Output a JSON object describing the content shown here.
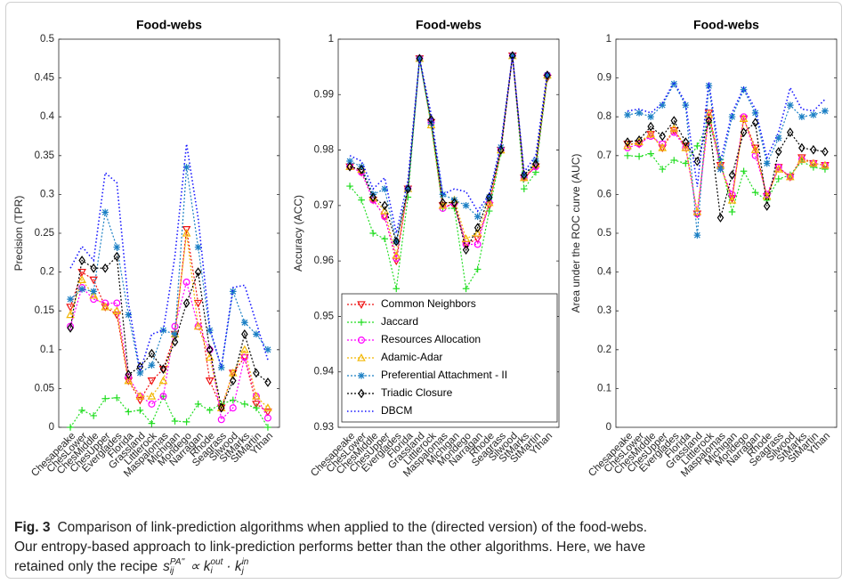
{
  "chart_data": [
    {
      "type": "line",
      "title": "Food-webs",
      "ylabel": "Precision (TPR)",
      "categories": [
        "Chesapeake",
        "ChesLower",
        "ChesMiddle",
        "ChesUpper",
        "Everglades",
        "Florida",
        "Grassland",
        "Littlerock",
        "Maspalomas",
        "Michigan",
        "Mondego",
        "Narragan",
        "Rhode",
        "Seagrass",
        "Silwood",
        "StMarks",
        "StMartin",
        "Ythan"
      ],
      "ylim": [
        0,
        0.5
      ],
      "yticks": [
        0,
        0.05,
        0.1,
        0.15,
        0.2,
        0.25,
        0.3,
        0.35,
        0.4,
        0.45,
        0.5
      ],
      "grid": false,
      "legend": false,
      "series": [
        {
          "color": "#ee1111",
          "marker": "v",
          "values": [
            0.155,
            0.2,
            0.19,
            0.155,
            0.145,
            0.06,
            0.035,
            0.06,
            0.075,
            0.12,
            0.255,
            0.16,
            0.06,
            0.025,
            0.07,
            0.09,
            0.03,
            0.02
          ]
        },
        {
          "color": "#22dd22",
          "marker": "+",
          "values": [
            0,
            0.022,
            0.015,
            0.037,
            0.038,
            0.02,
            0.022,
            0.005,
            0.04,
            0.008,
            0.007,
            0.03,
            0.022,
            0.03,
            0.035,
            0.03,
            0.025,
            0
          ]
        },
        {
          "color": "#ff00ff",
          "marker": "o",
          "values": [
            0.13,
            0.18,
            0.165,
            0.16,
            0.16,
            0.065,
            0.04,
            0.03,
            0.04,
            0.13,
            0.187,
            0.13,
            0.1,
            0.01,
            0.025,
            0.09,
            0.04,
            0.012
          ]
        },
        {
          "color": "#f2b600",
          "marker": "^",
          "values": [
            0.145,
            0.19,
            0.17,
            0.155,
            0.15,
            0.06,
            0.04,
            0.04,
            0.06,
            0.12,
            0.25,
            0.13,
            0.09,
            0.025,
            0.07,
            0.1,
            0.04,
            0.025
          ]
        },
        {
          "color": "#1b7fc4",
          "marker": "*",
          "values": [
            0.165,
            0.178,
            0.175,
            0.277,
            0.232,
            0.145,
            0.07,
            0.08,
            0.125,
            0.12,
            0.335,
            0.232,
            0.125,
            0.077,
            0.175,
            0.135,
            0.12,
            0.1
          ]
        },
        {
          "color": "#000000",
          "marker": "d",
          "values": [
            0.128,
            0.215,
            0.205,
            0.205,
            0.22,
            0.068,
            0.078,
            0.095,
            0.075,
            0.11,
            0.16,
            0.2,
            0.1,
            0.025,
            0.06,
            0.12,
            0.07,
            0.058
          ]
        },
        {
          "color": "#1515ff",
          "marker": "none",
          "values": [
            0.205,
            0.233,
            0.215,
            0.328,
            0.315,
            0.16,
            0.072,
            0.12,
            0.125,
            0.22,
            0.365,
            0.27,
            0.128,
            0.077,
            0.18,
            0.183,
            0.135,
            0.087
          ]
        }
      ]
    },
    {
      "type": "line",
      "title": "Food-webs",
      "ylabel": "Accuracy (ACC)",
      "categories": [
        "Chesapeake",
        "ChesLower",
        "ChesMiddle",
        "ChesUpper",
        "Everglades",
        "Florida",
        "Grassland",
        "Littlerock",
        "Maspalomas",
        "Michigan",
        "Mondego",
        "Narragan",
        "Rhode",
        "Seagrass",
        "Silwood",
        "StMarks",
        "StMartin",
        "Ythan"
      ],
      "ylim": [
        0.93,
        1
      ],
      "yticks": [
        0.93,
        0.94,
        0.95,
        0.96,
        0.97,
        0.98,
        0.99,
        1
      ],
      "grid": false,
      "legend": true,
      "legend_loc": "lower left",
      "series": [
        {
          "name": "Common Neighbors",
          "color": "#ee1111",
          "marker": "v",
          "values": [
            0.977,
            0.976,
            0.971,
            0.968,
            0.96,
            0.973,
            0.9965,
            0.985,
            0.97,
            0.97,
            0.963,
            0.964,
            0.97,
            0.98,
            0.997,
            0.975,
            0.977,
            0.993
          ]
        },
        {
          "name": "Jaccard",
          "color": "#22dd22",
          "marker": "+",
          "values": [
            0.9735,
            0.971,
            0.965,
            0.964,
            0.955,
            0.9715,
            0.9965,
            0.9845,
            0.9695,
            0.9695,
            0.955,
            0.9585,
            0.969,
            0.9795,
            0.997,
            0.973,
            0.976,
            0.993
          ]
        },
        {
          "name": "Resources Allocation",
          "color": "#ff00ff",
          "marker": "o",
          "values": [
            0.977,
            0.976,
            0.971,
            0.968,
            0.9605,
            0.973,
            0.9965,
            0.985,
            0.9695,
            0.9705,
            0.963,
            0.963,
            0.9705,
            0.98,
            0.997,
            0.975,
            0.977,
            0.9935
          ]
        },
        {
          "name": "Adamic-Adar",
          "color": "#f2b600",
          "marker": "^",
          "values": [
            0.977,
            0.9765,
            0.9715,
            0.969,
            0.961,
            0.973,
            0.9965,
            0.9845,
            0.97,
            0.971,
            0.964,
            0.965,
            0.9705,
            0.98,
            0.997,
            0.975,
            0.9775,
            0.9935
          ]
        },
        {
          "name": "Preferential Attachment - II",
          "color": "#1b7fc4",
          "marker": "*",
          "values": [
            0.978,
            0.977,
            0.972,
            0.973,
            0.9635,
            0.973,
            0.9965,
            0.985,
            0.972,
            0.971,
            0.97,
            0.968,
            0.9715,
            0.9805,
            0.997,
            0.9755,
            0.978,
            0.9935
          ]
        },
        {
          "name": "Triadic Closure",
          "color": "#000000",
          "marker": "d",
          "values": [
            0.977,
            0.9765,
            0.9715,
            0.97,
            0.9635,
            0.973,
            0.9965,
            0.9855,
            0.9705,
            0.9705,
            0.962,
            0.966,
            0.9715,
            0.98,
            0.997,
            0.9755,
            0.9775,
            0.9935
          ]
        },
        {
          "name": "DBCM",
          "color": "#1515ff",
          "marker": "none",
          "values": [
            0.979,
            0.978,
            0.973,
            0.975,
            0.965,
            0.9745,
            0.9965,
            0.9865,
            0.972,
            0.973,
            0.9725,
            0.969,
            0.972,
            0.981,
            0.997,
            0.976,
            0.979,
            0.994
          ]
        }
      ]
    },
    {
      "type": "line",
      "title": "Food-webs",
      "ylabel": "Area under the ROC curve (AUC)",
      "categories": [
        "Chesapeake",
        "ChesLower",
        "ChesMiddle",
        "ChesUpper",
        "Everglades",
        "Florida",
        "Grassland",
        "Littlerock",
        "Maspalomas",
        "Michigan",
        "Mondego",
        "Narragan",
        "Rhode",
        "Seagrass",
        "Silwood",
        "StMarks",
        "StMartin",
        "Ythan"
      ],
      "ylim": [
        0,
        1
      ],
      "yticks": [
        0,
        0.1,
        0.2,
        0.3,
        0.4,
        0.5,
        0.6,
        0.7,
        0.8,
        0.9,
        1
      ],
      "grid": false,
      "legend": false,
      "series": [
        {
          "color": "#ee1111",
          "marker": "v",
          "values": [
            0.73,
            0.73,
            0.755,
            0.72,
            0.765,
            0.725,
            0.55,
            0.81,
            0.675,
            0.59,
            0.795,
            0.72,
            0.595,
            0.67,
            0.645,
            0.695,
            0.68,
            0.675
          ]
        },
        {
          "color": "#22dd22",
          "marker": "+",
          "values": [
            0.7,
            0.698,
            0.705,
            0.665,
            0.688,
            0.68,
            0.725,
            0.785,
            0.69,
            0.555,
            0.66,
            0.605,
            0.585,
            0.64,
            0.65,
            0.685,
            0.67,
            0.665
          ]
        },
        {
          "color": "#ff00ff",
          "marker": "o",
          "values": [
            0.72,
            0.73,
            0.75,
            0.73,
            0.76,
            0.72,
            0.55,
            0.8,
            0.67,
            0.6,
            0.8,
            0.7,
            0.6,
            0.67,
            0.645,
            0.69,
            0.68,
            0.675
          ]
        },
        {
          "color": "#f2b600",
          "marker": "^",
          "values": [
            0.725,
            0.735,
            0.755,
            0.72,
            0.77,
            0.72,
            0.555,
            0.805,
            0.675,
            0.585,
            0.795,
            0.715,
            0.595,
            0.665,
            0.645,
            0.69,
            0.68,
            0.675
          ]
        },
        {
          "color": "#1b7fc4",
          "marker": "*",
          "values": [
            0.805,
            0.81,
            0.8,
            0.83,
            0.885,
            0.83,
            0.495,
            0.88,
            0.665,
            0.8,
            0.87,
            0.81,
            0.68,
            0.745,
            0.83,
            0.8,
            0.805,
            0.815
          ]
        },
        {
          "color": "#000000",
          "marker": "d",
          "values": [
            0.735,
            0.74,
            0.775,
            0.75,
            0.79,
            0.735,
            0.685,
            0.79,
            0.54,
            0.65,
            0.76,
            0.785,
            0.57,
            0.71,
            0.76,
            0.72,
            0.715,
            0.71
          ]
        },
        {
          "color": "#1515ff",
          "marker": "none",
          "values": [
            0.815,
            0.82,
            0.81,
            0.835,
            0.89,
            0.835,
            0.62,
            0.89,
            0.685,
            0.81,
            0.875,
            0.82,
            0.695,
            0.76,
            0.875,
            0.82,
            0.815,
            0.845
          ]
        }
      ]
    }
  ],
  "caption": {
    "label": "Fig. 3",
    "lines": [
      "Comparison of link-prediction algorithms when applied to the (directed version) of the food-webs.",
      "Our entropy-based approach to link-prediction performs better than the other algorithms. Here, we have",
      "retained only the recipe"
    ],
    "formula": [
      {
        "base": "s",
        "sub": "ij",
        "sup": "PA''"
      },
      {
        "base": "∝ k",
        "sub": "i",
        "sup": "out"
      },
      {
        "base": "· k",
        "sub": "j",
        "sup": "in"
      }
    ]
  }
}
